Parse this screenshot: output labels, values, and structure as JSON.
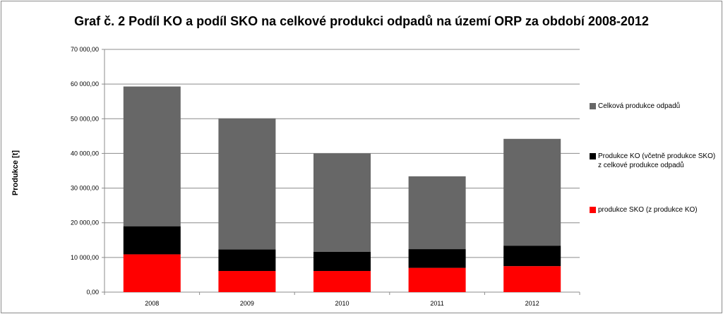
{
  "chart_data": {
    "type": "bar",
    "stacked": true,
    "title": "Graf č. 2 Podíl KO a podíl SKO na celkové produkci odpadů na území ORP za období 2008-2012",
    "xlabel": "",
    "ylabel": "Produkce [t]",
    "ylim": [
      0,
      70000
    ],
    "yticks": [
      "0,00",
      "10 000,00",
      "20 000,00",
      "30 000,00",
      "40 000,00",
      "50 000,00",
      "60 000,00",
      "70 000,00"
    ],
    "categories": [
      "2008",
      "2009",
      "2010",
      "2011",
      "2012"
    ],
    "grid": true,
    "legend_position": "right",
    "series": [
      {
        "name": "produkce SKO (z produkce KO)",
        "color": "#ff0000",
        "values": [
          10900,
          6100,
          6100,
          7000,
          7500
        ]
      },
      {
        "name": "Produkce KO (včetně produkce SKO) z celkové produkce odpadů",
        "color": "#000000",
        "values": [
          8100,
          6200,
          5500,
          5400,
          5900
        ]
      },
      {
        "name": "Celková produkce odpadů",
        "color": "#676767",
        "values": [
          40300,
          37800,
          28400,
          21000,
          30800
        ]
      }
    ]
  }
}
